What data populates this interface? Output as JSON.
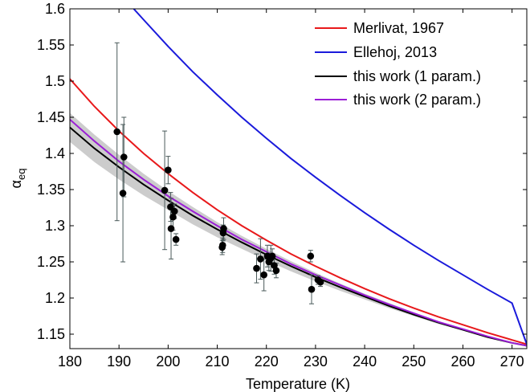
{
  "chart_data": {
    "type": "line",
    "title": "",
    "xlabel": "Temperature (K)",
    "ylabel_main": "α",
    "ylabel_sub": "eq",
    "xlim": [
      180,
      273
    ],
    "ylim": [
      1.13,
      1.6
    ],
    "xticks": [
      180,
      190,
      200,
      210,
      220,
      230,
      240,
      250,
      260,
      270
    ],
    "xtick_labels": [
      "180",
      "190",
      "200",
      "210",
      "220",
      "230",
      "240",
      "250",
      "260",
      "270"
    ],
    "yticks": [
      1.15,
      1.2,
      1.25,
      1.3,
      1.35,
      1.4,
      1.45,
      1.5,
      1.55,
      1.6
    ],
    "ytick_labels": [
      "1.15",
      "1.2",
      "1.25",
      "1.3",
      "1.35",
      "1.4",
      "1.45",
      "1.5",
      "1.55",
      "1.6"
    ],
    "grid": false,
    "legend_position": "top-right",
    "series": [
      {
        "name": "Merlivat, 1967",
        "color": "#e8191b",
        "x": [
          180,
          185,
          190,
          195,
          200,
          205,
          210,
          215,
          220,
          225,
          230,
          235,
          240,
          245,
          250,
          255,
          260,
          265,
          270,
          273
        ],
        "y": [
          1.503,
          1.465,
          1.431,
          1.4,
          1.372,
          1.346,
          1.322,
          1.3,
          1.28,
          1.261,
          1.244,
          1.228,
          1.213,
          1.199,
          1.186,
          1.174,
          1.163,
          1.152,
          1.142,
          1.136
        ]
      },
      {
        "name": "Ellehoj, 2013",
        "color": "#1a1adb",
        "x": [
          193,
          195,
          200,
          205,
          210,
          215,
          220,
          225,
          230,
          235,
          240,
          245,
          250,
          255,
          260,
          265,
          270,
          273
        ],
        "y": [
          1.6,
          1.585,
          1.548,
          1.513,
          1.481,
          1.45,
          1.421,
          1.393,
          1.367,
          1.342,
          1.318,
          1.295,
          1.273,
          1.252,
          1.232,
          1.212,
          1.193,
          1.136
        ]
      },
      {
        "name": "this work (1 param.)",
        "color": "#000000",
        "x": [
          180,
          185,
          190,
          195,
          200,
          205,
          210,
          215,
          220,
          225,
          230,
          235,
          240,
          245,
          250,
          255,
          260,
          265,
          270,
          273
        ],
        "y": [
          1.436,
          1.407,
          1.381,
          1.357,
          1.335,
          1.314,
          1.295,
          1.277,
          1.26,
          1.244,
          1.229,
          1.215,
          1.202,
          1.189,
          1.177,
          1.166,
          1.156,
          1.146,
          1.138,
          1.134
        ]
      },
      {
        "name": "this work (2 param.)",
        "color": "#9b1ed6",
        "x": [
          180,
          185,
          190,
          195,
          200,
          205,
          210,
          215,
          220,
          225,
          230,
          235,
          240,
          245,
          250,
          255,
          260,
          265,
          270,
          273
        ],
        "y": [
          1.447,
          1.417,
          1.389,
          1.364,
          1.341,
          1.32,
          1.3,
          1.281,
          1.264,
          1.247,
          1.232,
          1.218,
          1.204,
          1.191,
          1.179,
          1.167,
          1.157,
          1.147,
          1.138,
          1.134
        ]
      }
    ],
    "band": {
      "color": "#cccccc",
      "x": [
        180,
        185,
        190,
        195,
        200,
        205,
        210,
        215,
        220,
        225,
        230,
        235,
        240,
        245,
        250,
        255,
        260,
        265,
        270,
        273
      ],
      "upper": [
        1.456,
        1.426,
        1.398,
        1.372,
        1.348,
        1.326,
        1.305,
        1.286,
        1.268,
        1.251,
        1.235,
        1.22,
        1.206,
        1.193,
        1.18,
        1.168,
        1.157,
        1.147,
        1.138,
        1.134
      ],
      "lower": [
        1.416,
        1.388,
        1.364,
        1.342,
        1.322,
        1.302,
        1.284,
        1.268,
        1.252,
        1.237,
        1.223,
        1.21,
        1.198,
        1.186,
        1.175,
        1.164,
        1.155,
        1.145,
        1.137,
        1.134
      ]
    },
    "measurements": {
      "color": "#000000",
      "errorbar_color": "#4a5a5a",
      "points": [
        {
          "x": 189.6,
          "y": 1.43,
          "err": 0.123
        },
        {
          "x": 190.8,
          "y": 1.345,
          "err": 0.095
        },
        {
          "x": 191.0,
          "y": 1.395,
          "err": 0.055
        },
        {
          "x": 199.3,
          "y": 1.349,
          "err": 0.082
        },
        {
          "x": 200.0,
          "y": 1.377,
          "err": 0.019
        },
        {
          "x": 200.5,
          "y": 1.326,
          "err": 0.02
        },
        {
          "x": 200.6,
          "y": 1.296,
          "err": 0.042
        },
        {
          "x": 201.0,
          "y": 1.312,
          "err": 0.018
        },
        {
          "x": 201.3,
          "y": 1.32,
          "err": 0.01
        },
        {
          "x": 201.6,
          "y": 1.281,
          "err": 0.008
        },
        {
          "x": 211.0,
          "y": 1.27,
          "err": 0.01
        },
        {
          "x": 211.1,
          "y": 1.273,
          "err": 0.01
        },
        {
          "x": 211.2,
          "y": 1.29,
          "err": 0.011
        },
        {
          "x": 211.3,
          "y": 1.296,
          "err": 0.015
        },
        {
          "x": 218.0,
          "y": 1.241,
          "err": 0.02
        },
        {
          "x": 218.8,
          "y": 1.254,
          "err": 0.028
        },
        {
          "x": 219.5,
          "y": 1.232,
          "err": 0.022
        },
        {
          "x": 220.2,
          "y": 1.258,
          "err": 0.015
        },
        {
          "x": 220.5,
          "y": 1.25,
          "err": 0.012
        },
        {
          "x": 220.9,
          "y": 1.255,
          "err": 0.018
        },
        {
          "x": 221.2,
          "y": 1.258,
          "err": 0.01
        },
        {
          "x": 221.6,
          "y": 1.245,
          "err": 0.012
        },
        {
          "x": 222.0,
          "y": 1.238,
          "err": 0.01
        },
        {
          "x": 229.0,
          "y": 1.258,
          "err": 0.008
        },
        {
          "x": 229.2,
          "y": 1.212,
          "err": 0.02
        },
        {
          "x": 230.5,
          "y": 1.225,
          "err": 0.006
        },
        {
          "x": 231.0,
          "y": 1.222,
          "err": 0.006
        }
      ]
    }
  }
}
